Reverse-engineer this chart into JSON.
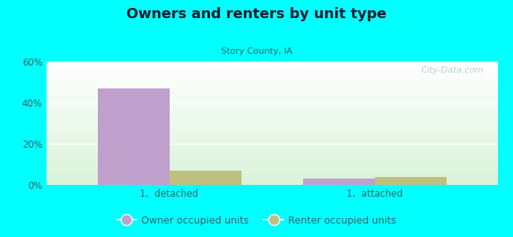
{
  "title": "Owners and renters by unit type",
  "subtitle": "Story County, IA",
  "categories": [
    "1,  detached",
    "1,  attached"
  ],
  "owner_values": [
    47.0,
    3.0
  ],
  "renter_values": [
    7.0,
    4.0
  ],
  "owner_color": "#bf9fcc",
  "renter_color": "#bfbf80",
  "ylim": [
    0,
    60
  ],
  "yticks": [
    0,
    20,
    40,
    60
  ],
  "ytick_labels": [
    "0%",
    "20%",
    "40%",
    "60%"
  ],
  "background_color": "#00ffff",
  "bar_width": 0.35,
  "legend_labels": [
    "Owner occupied units",
    "Renter occupied units"
  ],
  "watermark": "City-Data.com",
  "title_color": "#1a1a2e",
  "subtitle_color": "#336666",
  "tick_color": "#336666"
}
